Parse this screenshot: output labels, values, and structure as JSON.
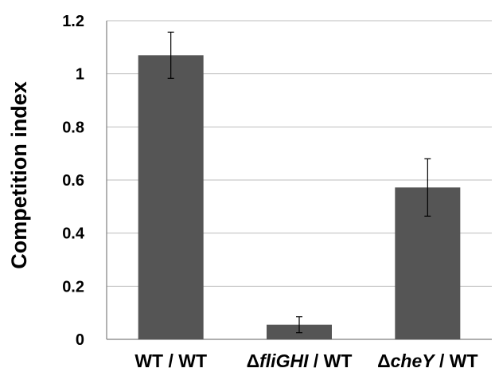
{
  "chart_data": {
    "type": "bar",
    "title": "",
    "xlabel": "",
    "ylabel": "Competition index",
    "ylim": [
      0,
      1.2
    ],
    "yticks": [
      "0",
      "0.2",
      "0.4",
      "0.6",
      "0.8",
      "1",
      "1.2"
    ],
    "grid": true,
    "categories": [
      {
        "prefix": "",
        "italic": "",
        "suffix": "WT / WT"
      },
      {
        "prefix": "Δ",
        "italic": "fliGHI",
        "suffix": " / WT"
      },
      {
        "prefix": "Δ",
        "italic": "cheY",
        "suffix": " / WT"
      }
    ],
    "values": [
      1.07,
      0.055,
      0.572
    ],
    "errors": [
      0.087,
      0.03,
      0.108
    ],
    "bar_color": "#555555"
  }
}
